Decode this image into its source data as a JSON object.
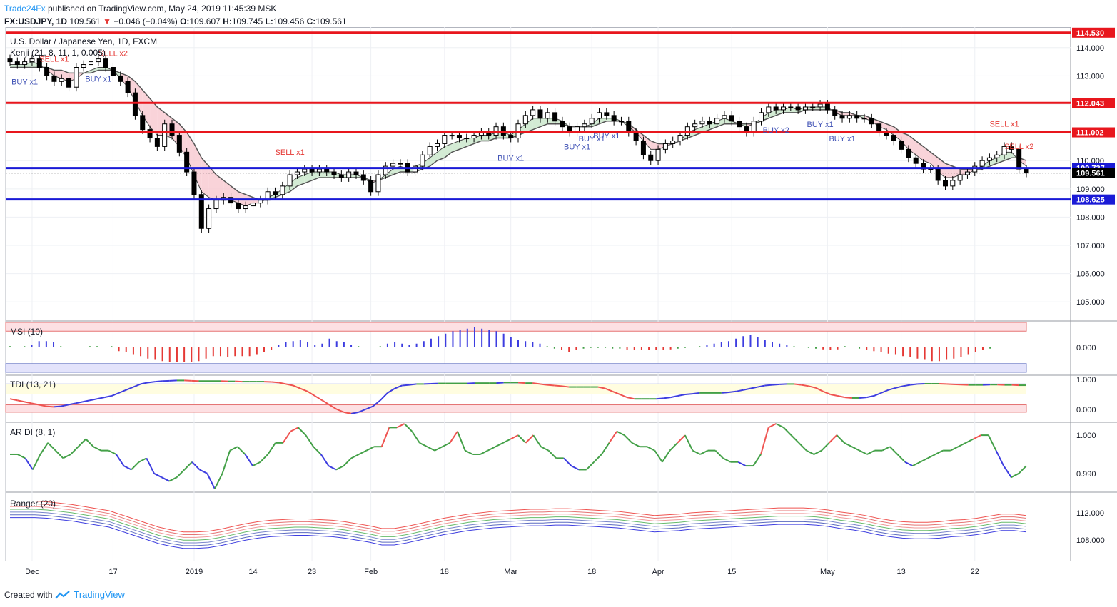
{
  "header": {
    "publisher": "Trade24Fx",
    "published_text": "published on TradingView.com, May 24, 2019 11:45:39 MSK",
    "symbol": "FX:USDJPY, 1D",
    "last": "109.561",
    "change": "−0.046 (−0.04%)",
    "o": "109.607",
    "h": "109.745",
    "l": "109.456",
    "c": "109.561"
  },
  "footer": {
    "created_with": "Created with",
    "tradingview": "TradingView"
  },
  "colors": {
    "up": "#ffffff",
    "down": "#000000",
    "resistance": "#e8161d",
    "support": "#1a1ad6",
    "sell_marker": "#e53935",
    "buy_marker": "#3f51b5",
    "cloud_bear": "#f8c8cf",
    "cloud_bull": "#c8e6c9"
  },
  "chart_data": [
    {
      "type": "candlestick",
      "title": "U.S. Dollar / Japanese Yen, 1D, FXCM",
      "indicator_label": "Kenji (21, 8, 11, 1, 0.005)",
      "x_tick_labels": [
        "Dec",
        "17",
        "2019",
        "14",
        "23",
        "Feb",
        "18",
        "Mar",
        "18",
        "Apr",
        "15",
        "May",
        "13",
        "22"
      ],
      "y_ticks": [
        105.0,
        106.0,
        107.0,
        108.0,
        109.0,
        110.0,
        111.0,
        112.0,
        113.0,
        114.0
      ],
      "ylim": [
        104.4,
        114.55
      ],
      "horizontal_levels": [
        {
          "value": 114.53,
          "label": "114.530",
          "color": "#e8161d"
        },
        {
          "value": 112.043,
          "label": "112.043",
          "color": "#e8161d"
        },
        {
          "value": 111.002,
          "label": "111.002",
          "color": "#e8161d"
        },
        {
          "value": 109.737,
          "label": "109.737",
          "color": "#1a1ad6"
        },
        {
          "value": 108.625,
          "label": "108.625",
          "color": "#1a1ad6"
        }
      ],
      "last_price_label": "109.561",
      "close": [
        113.5,
        113.4,
        113.5,
        113.6,
        113.3,
        113.0,
        112.8,
        112.9,
        112.6,
        113.3,
        113.4,
        113.5,
        113.6,
        113.3,
        113.0,
        112.8,
        112.4,
        111.6,
        111.1,
        110.8,
        110.5,
        111.3,
        110.9,
        110.3,
        109.6,
        108.8,
        107.6,
        108.3,
        108.6,
        108.7,
        108.5,
        108.3,
        108.4,
        108.5,
        108.6,
        108.9,
        108.8,
        109.1,
        109.5,
        109.6,
        109.7,
        109.6,
        109.7,
        109.6,
        109.5,
        109.4,
        109.6,
        109.5,
        109.3,
        108.9,
        109.5,
        109.8,
        109.9,
        109.9,
        109.6,
        109.8,
        110.2,
        110.5,
        110.6,
        110.9,
        110.9,
        110.8,
        110.8,
        110.9,
        111.0,
        110.9,
        111.2,
        110.9,
        110.8,
        111.3,
        111.6,
        111.8,
        111.5,
        111.7,
        111.4,
        111.2,
        111.0,
        111.2,
        111.3,
        111.5,
        111.7,
        111.6,
        111.4,
        111.4,
        111.0,
        110.7,
        110.2,
        110.0,
        110.4,
        110.6,
        110.7,
        110.9,
        111.2,
        111.3,
        111.4,
        111.3,
        111.5,
        111.6,
        111.4,
        111.2,
        111.0,
        111.4,
        111.7,
        111.9,
        111.8,
        111.9,
        111.9,
        111.8,
        111.9,
        111.9,
        112.0,
        111.8,
        111.6,
        111.5,
        111.6,
        111.5,
        111.5,
        111.3,
        111.0,
        110.9,
        110.7,
        110.4,
        110.1,
        109.9,
        109.7,
        109.7,
        109.3,
        109.1,
        109.3,
        109.5,
        109.6,
        109.8,
        110.0,
        110.1,
        110.2,
        110.5,
        110.4,
        109.7,
        109.561
      ],
      "kenji_fast": [
        113.4,
        113.4,
        113.4,
        113.5,
        113.4,
        113.2,
        113.0,
        112.9,
        112.8,
        112.9,
        113.1,
        113.2,
        113.3,
        113.3,
        113.2,
        112.9,
        112.6,
        112.1,
        111.6,
        111.2,
        110.9,
        110.9,
        110.8,
        110.5,
        110.1,
        109.5,
        108.9,
        108.7,
        108.6,
        108.6,
        108.6,
        108.5,
        108.4,
        108.5,
        108.5,
        108.7,
        108.8,
        109.0,
        109.2,
        109.4,
        109.5,
        109.6,
        109.6,
        109.6,
        109.6,
        109.5,
        109.5,
        109.5,
        109.4,
        109.2,
        109.3,
        109.5,
        109.7,
        109.8,
        109.7,
        109.8,
        109.9,
        110.1,
        110.3,
        110.5,
        110.6,
        110.7,
        110.8,
        110.8,
        110.9,
        110.9,
        111.0,
        111.0,
        110.9,
        111.1,
        111.3,
        111.5,
        111.5,
        111.5,
        111.5,
        111.4,
        111.2,
        111.2,
        111.2,
        111.3,
        111.5,
        111.5,
        111.5,
        111.4,
        111.2,
        111.0,
        110.7,
        110.4,
        110.4,
        110.5,
        110.6,
        110.7,
        111.0,
        111.1,
        111.2,
        111.3,
        111.4,
        111.5,
        111.4,
        111.3,
        111.2,
        111.3,
        111.5,
        111.7,
        111.8,
        111.8,
        111.9,
        111.8,
        111.9,
        111.9,
        111.9,
        111.9,
        111.7,
        111.6,
        111.6,
        111.6,
        111.5,
        111.4,
        111.2,
        111.1,
        110.9,
        110.7,
        110.4,
        110.2,
        110.0,
        109.9,
        109.6,
        109.4,
        109.4,
        109.5,
        109.5,
        109.7,
        109.8,
        110.0,
        110.1,
        110.3,
        110.3,
        110.0,
        109.8
      ],
      "kenji_slow": [
        113.3,
        113.3,
        113.3,
        113.3,
        113.3,
        113.3,
        113.2,
        113.2,
        113.1,
        113.1,
        113.1,
        113.1,
        113.2,
        113.2,
        113.2,
        113.1,
        113.0,
        112.8,
        112.5,
        112.2,
        111.9,
        111.7,
        111.5,
        111.3,
        111.0,
        110.6,
        110.1,
        109.8,
        109.5,
        109.3,
        109.1,
        108.9,
        108.8,
        108.7,
        108.6,
        108.6,
        108.7,
        108.8,
        108.9,
        109.1,
        109.2,
        109.3,
        109.4,
        109.4,
        109.4,
        109.4,
        109.4,
        109.4,
        109.4,
        109.3,
        109.3,
        109.4,
        109.5,
        109.6,
        109.6,
        109.6,
        109.7,
        109.8,
        110.0,
        110.1,
        110.3,
        110.4,
        110.5,
        110.6,
        110.7,
        110.7,
        110.8,
        110.8,
        110.8,
        110.9,
        111.0,
        111.1,
        111.2,
        111.3,
        111.3,
        111.3,
        111.2,
        111.2,
        111.2,
        111.2,
        111.3,
        111.4,
        111.4,
        111.4,
        111.3,
        111.1,
        110.9,
        110.7,
        110.6,
        110.6,
        110.6,
        110.7,
        110.8,
        110.9,
        111.0,
        111.1,
        111.2,
        111.3,
        111.3,
        111.3,
        111.3,
        111.3,
        111.4,
        111.5,
        111.6,
        111.7,
        111.7,
        111.7,
        111.8,
        111.8,
        111.8,
        111.8,
        111.8,
        111.7,
        111.7,
        111.6,
        111.6,
        111.5,
        111.4,
        111.3,
        111.2,
        111.0,
        110.9,
        110.7,
        110.5,
        110.3,
        110.1,
        109.9,
        109.8,
        109.7,
        109.7,
        109.7,
        109.7,
        109.8,
        109.9,
        110.0,
        110.1,
        110.1,
        110.0
      ],
      "signals": [
        {
          "label": "BUY x1",
          "index": 2,
          "kind": "buy"
        },
        {
          "label": "SELL x1",
          "index": 6,
          "kind": "sell"
        },
        {
          "label": "BUY x1",
          "index": 12,
          "kind": "buy"
        },
        {
          "label": "SELL x2",
          "index": 14,
          "kind": "sell"
        },
        {
          "label": "SELL x1",
          "index": 38,
          "kind": "sell"
        },
        {
          "label": "BUY x1",
          "index": 68,
          "kind": "buy"
        },
        {
          "label": "BUY x1",
          "index": 77,
          "kind": "buy"
        },
        {
          "label": "BUY x1",
          "index": 79,
          "kind": "buy"
        },
        {
          "label": "BUY x1",
          "index": 81,
          "kind": "buy"
        },
        {
          "label": "BUY x2",
          "index": 104,
          "kind": "buy"
        },
        {
          "label": "BUY x1",
          "index": 110,
          "kind": "buy"
        },
        {
          "label": "BUY x1",
          "index": 113,
          "kind": "buy"
        },
        {
          "label": "SELL x1",
          "index": 135,
          "kind": "sell"
        },
        {
          "label": "SELL x2",
          "index": 137,
          "kind": "sell"
        }
      ]
    },
    {
      "type": "bar",
      "title": "MSI (10)",
      "ylim": [
        -1,
        1
      ],
      "y_tick_labels": [
        "0.000"
      ],
      "values": [
        0.05,
        0.02,
        0.05,
        0.1,
        0.25,
        0.25,
        0.2,
        0.05,
        0.02,
        0.02,
        0.02,
        0.05,
        0.05,
        0.02,
        0.05,
        -0.15,
        -0.2,
        -0.3,
        -0.35,
        -0.45,
        -0.5,
        -0.55,
        -0.6,
        -0.6,
        -0.6,
        -0.6,
        -0.55,
        -0.45,
        -0.35,
        -0.35,
        -0.4,
        -0.35,
        -0.35,
        -0.35,
        -0.3,
        -0.2,
        -0.1,
        0.1,
        0.2,
        0.25,
        0.3,
        0.2,
        0.1,
        0.15,
        0.35,
        0.25,
        0.2,
        0.1,
        0.05,
        0.02,
        0.02,
        0.05,
        0.15,
        0.2,
        0.15,
        0.1,
        0.15,
        0.25,
        0.35,
        0.45,
        0.55,
        0.65,
        0.7,
        0.75,
        0.8,
        0.75,
        0.7,
        0.65,
        0.55,
        0.4,
        0.3,
        0.25,
        0.2,
        0.15,
        0.05,
        -0.05,
        -0.1,
        -0.2,
        -0.1,
        -0.05,
        -0.02,
        -0.02,
        -0.02,
        -0.05,
        -0.05,
        -0.1,
        -0.1,
        -0.1,
        -0.1,
        -0.1,
        -0.1,
        -0.08,
        -0.05,
        -0.02,
        0.02,
        0.05,
        0.1,
        0.15,
        0.2,
        0.25,
        0.35,
        0.45,
        0.5,
        0.4,
        0.3,
        0.2,
        0.15,
        0.1,
        0.05,
        0.02,
        -0.02,
        -0.05,
        -0.08,
        -0.1,
        -0.08,
        0.05,
        0.02,
        -0.05,
        -0.1,
        -0.15,
        -0.2,
        -0.25,
        -0.3,
        -0.35,
        -0.4,
        -0.45,
        -0.5,
        -0.55,
        -0.55,
        -0.5,
        -0.45,
        -0.4,
        -0.3,
        -0.2,
        -0.1,
        -0.05,
        0.02,
        0.02,
        0.02,
        0.02,
        0.02
      ]
    },
    {
      "type": "line",
      "title": "TDI (13, 21)",
      "ylim": [
        -0.15,
        1.1
      ],
      "y_tick_labels": [
        "1.000",
        "0.000"
      ],
      "values": [
        0.35,
        0.3,
        0.25,
        0.2,
        0.15,
        0.1,
        0.08,
        0.1,
        0.15,
        0.2,
        0.25,
        0.3,
        0.35,
        0.4,
        0.45,
        0.55,
        0.65,
        0.75,
        0.85,
        0.9,
        0.93,
        0.95,
        0.96,
        0.97,
        0.97,
        0.96,
        0.95,
        0.95,
        0.95,
        0.95,
        0.94,
        0.94,
        0.93,
        0.93,
        0.93,
        0.93,
        0.92,
        0.9,
        0.85,
        0.8,
        0.7,
        0.6,
        0.45,
        0.3,
        0.15,
        0.0,
        -0.1,
        -0.15,
        -0.1,
        0.0,
        0.1,
        0.3,
        0.55,
        0.7,
        0.8,
        0.82,
        0.85,
        0.85,
        0.86,
        0.87,
        0.87,
        0.87,
        0.87,
        0.87,
        0.88,
        0.88,
        0.88,
        0.88,
        0.9,
        0.9,
        0.9,
        0.88,
        0.88,
        0.85,
        0.82,
        0.8,
        0.78,
        0.75,
        0.75,
        0.75,
        0.75,
        0.75,
        0.7,
        0.6,
        0.5,
        0.4,
        0.35,
        0.35,
        0.35,
        0.35,
        0.37,
        0.4,
        0.45,
        0.5,
        0.52,
        0.55,
        0.55,
        0.55,
        0.55,
        0.57,
        0.6,
        0.65,
        0.7,
        0.75,
        0.8,
        0.82,
        0.84,
        0.85,
        0.85,
        0.82,
        0.78,
        0.72,
        0.6,
        0.5,
        0.45,
        0.4,
        0.38,
        0.38,
        0.4,
        0.45,
        0.55,
        0.65,
        0.72,
        0.78,
        0.82,
        0.85,
        0.86,
        0.86,
        0.86,
        0.85,
        0.84,
        0.83,
        0.82,
        0.82,
        0.82,
        0.83,
        0.83,
        0.82,
        0.82,
        0.81,
        0.81
      ]
    },
    {
      "type": "line",
      "title": "AR DI (8, 1)",
      "ylim": [
        0.9855,
        1.003
      ],
      "y_tick_labels": [
        "1.000",
        "0.990"
      ],
      "values": [
        0.995,
        0.995,
        0.994,
        0.991,
        0.995,
        0.998,
        0.996,
        0.994,
        0.995,
        0.997,
        0.999,
        0.997,
        0.996,
        0.996,
        0.995,
        0.992,
        0.991,
        0.993,
        0.994,
        0.99,
        0.989,
        0.988,
        0.989,
        0.991,
        0.993,
        0.991,
        0.99,
        0.986,
        0.99,
        0.996,
        0.997,
        0.995,
        0.992,
        0.993,
        0.995,
        0.998,
        0.998,
        1.001,
        1.002,
        1.0,
        0.997,
        0.995,
        0.992,
        0.991,
        0.992,
        0.994,
        0.995,
        0.996,
        0.997,
        0.997,
        1.002,
        1.002,
        1.003,
        1.001,
        0.998,
        0.997,
        0.996,
        0.997,
        0.998,
        1.001,
        0.996,
        0.995,
        0.995,
        0.996,
        0.997,
        0.998,
        0.999,
        1.0,
        0.998,
        1.0,
        0.997,
        0.996,
        0.994,
        0.994,
        0.992,
        0.991,
        0.991,
        0.993,
        0.995,
        0.998,
        1.001,
        1.0,
        0.998,
        0.997,
        0.997,
        0.996,
        0.993,
        0.996,
        0.998,
        1.0,
        0.996,
        0.995,
        0.996,
        0.996,
        0.994,
        0.993,
        0.993,
        0.992,
        0.992,
        0.995,
        1.002,
        1.003,
        1.002,
        1.0,
        0.998,
        0.996,
        0.995,
        0.996,
        0.998,
        1.0,
        0.998,
        0.997,
        0.996,
        0.995,
        0.996,
        0.996,
        0.997,
        0.995,
        0.993,
        0.992,
        0.993,
        0.994,
        0.995,
        0.996,
        0.996,
        0.997,
        0.998,
        0.999,
        1.0,
        1.0,
        0.996,
        0.992,
        0.989,
        0.99,
        0.992
      ]
    },
    {
      "type": "line",
      "title": "Ranger (20)",
      "ylim": [
        105.0,
        114.8
      ],
      "y_tick_labels": [
        "112.000",
        "108.000"
      ],
      "values": [
        112.5,
        112.5,
        112.5,
        112.4,
        112.2,
        112.0,
        111.7,
        111.4,
        111.1,
        110.5,
        109.9,
        109.3,
        108.7,
        108.3,
        108.0,
        108.0,
        108.1,
        108.4,
        108.8,
        109.2,
        109.5,
        109.7,
        109.8,
        109.9,
        109.9,
        109.8,
        109.7,
        109.5,
        109.2,
        108.9,
        108.5,
        108.5,
        108.8,
        109.2,
        109.6,
        110.0,
        110.3,
        110.6,
        110.8,
        111.0,
        111.1,
        111.2,
        111.3,
        111.3,
        111.4,
        111.4,
        111.3,
        111.2,
        111.1,
        111.0,
        110.8,
        110.6,
        110.4,
        110.5,
        110.6,
        110.8,
        110.9,
        111.0,
        111.1,
        111.2,
        111.3,
        111.4,
        111.5,
        111.5,
        111.5,
        111.4,
        111.2,
        110.9,
        110.7,
        110.4,
        110.0,
        109.7,
        109.5,
        109.4,
        109.4,
        109.5,
        109.7,
        109.8,
        110.0,
        110.3,
        110.6,
        110.6,
        110.4
      ]
    }
  ]
}
